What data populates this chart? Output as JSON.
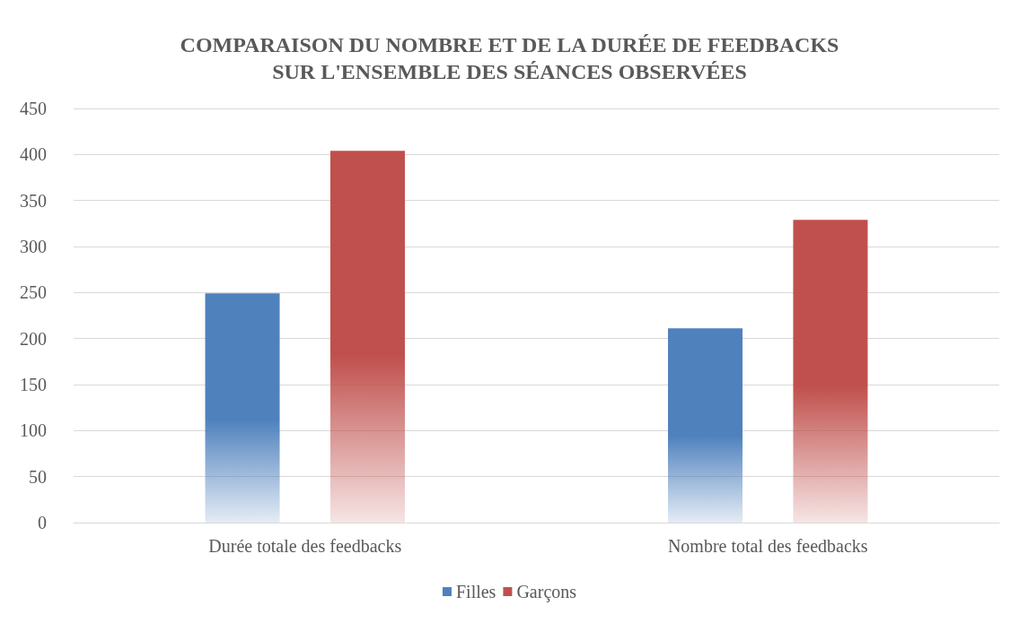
{
  "chart_data": {
    "type": "bar",
    "title": "COMPARAISON DU NOMBRE ET DE LA DURÉE DE FEEDBACKS\nSUR L'ENSEMBLE DES SÉANCES OBSERVÉES",
    "categories": [
      "Durée totale des feedbacks",
      "Nombre total des feedbacks"
    ],
    "series": [
      {
        "name": "Filles",
        "color": "#4f81bd",
        "values": [
          249,
          211
        ]
      },
      {
        "name": "Garçons",
        "color": "#c0504d",
        "values": [
          404,
          329
        ]
      }
    ],
    "ylim": [
      0,
      450
    ],
    "yticks": [
      0,
      50,
      100,
      150,
      200,
      250,
      300,
      350,
      400,
      450
    ],
    "grid": "y",
    "legend": "bottom"
  }
}
